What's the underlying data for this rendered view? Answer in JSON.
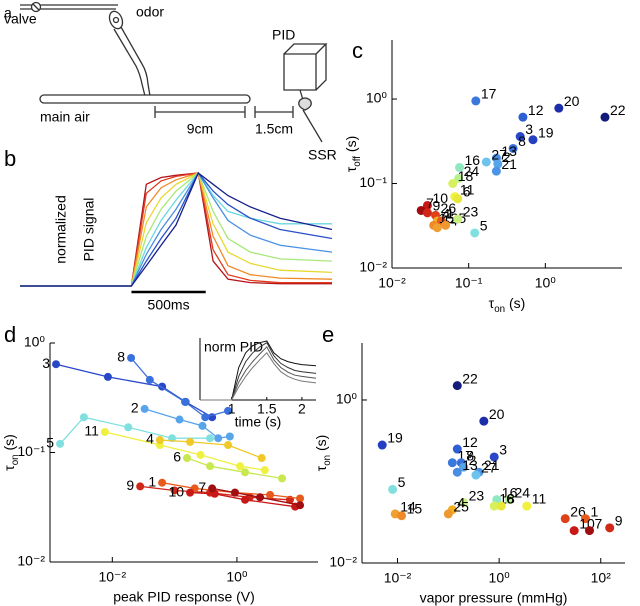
{
  "diagram": {
    "panel": "a",
    "labels": {
      "valve": "valve",
      "odor": "odor",
      "main_air": "main air",
      "dist1": "9cm",
      "dist2": "1.5cm",
      "pid": "PID",
      "ssr": "SSR"
    }
  },
  "chart_data": [
    {
      "panel": "b",
      "type": "line",
      "ylabel": [
        "normalized",
        "PID signal"
      ],
      "scale_bar": {
        "value": 500,
        "label": "500ms"
      },
      "xlim": [
        -750,
        1350
      ],
      "ylim": [
        0,
        1
      ],
      "x": [
        -750,
        0,
        100,
        200,
        300,
        450,
        550,
        650,
        800,
        1000,
        1350
      ],
      "series": [
        {
          "color": "#b3121a",
          "values": [
            0,
            0,
            0.9,
            0.96,
            0.98,
            1,
            0.22,
            0.06,
            0.03,
            0.02,
            0.02
          ]
        },
        {
          "color": "#e03a1c",
          "values": [
            0,
            0,
            0.82,
            0.93,
            0.97,
            1,
            0.32,
            0.1,
            0.05,
            0.03,
            0.03
          ]
        },
        {
          "color": "#f08a28",
          "values": [
            0,
            0,
            0.7,
            0.87,
            0.94,
            1,
            0.44,
            0.18,
            0.1,
            0.07,
            0.06
          ]
        },
        {
          "color": "#e8d830",
          "values": [
            0,
            0,
            0.56,
            0.78,
            0.9,
            1,
            0.55,
            0.3,
            0.2,
            0.14,
            0.12
          ]
        },
        {
          "color": "#a8e878",
          "values": [
            0,
            0,
            0.44,
            0.68,
            0.84,
            1,
            0.66,
            0.42,
            0.3,
            0.24,
            0.22
          ]
        },
        {
          "color": "#68d8e0",
          "values": [
            0,
            0,
            0.34,
            0.58,
            0.76,
            1,
            0.8,
            0.66,
            0.6,
            0.55,
            0.55
          ]
        },
        {
          "color": "#4a90e4",
          "values": [
            0,
            0,
            0.28,
            0.5,
            0.68,
            1,
            0.78,
            0.58,
            0.45,
            0.36,
            0.3
          ]
        },
        {
          "color": "#2a50c8",
          "values": [
            0,
            0,
            0.22,
            0.42,
            0.6,
            1,
            0.84,
            0.72,
            0.6,
            0.5,
            0.42
          ]
        },
        {
          "color": "#16208a",
          "values": [
            0,
            0,
            0.18,
            0.36,
            0.54,
            1,
            0.9,
            0.8,
            0.7,
            0.6,
            0.5
          ]
        }
      ]
    },
    {
      "panel": "c",
      "type": "scatter",
      "xlabel": {
        "symbol": "τ",
        "sub": "on",
        "unit": " (s)"
      },
      "ylabel": {
        "symbol": "τ",
        "sub": "off",
        "unit": " (s)"
      },
      "xscale": "log",
      "yscale": "log",
      "xlim": [
        0.01,
        10
      ],
      "ylim": [
        0.01,
        5
      ],
      "xticks": [
        {
          "value": 0.01,
          "label": "10⁻²"
        },
        {
          "value": 0.1,
          "label": "10⁻¹"
        },
        {
          "value": 1,
          "label": "10⁰"
        }
      ],
      "yticks": [
        {
          "value": 0.01,
          "label": "10⁻²"
        },
        {
          "value": 0.1,
          "label": "10⁻¹"
        },
        {
          "value": 1,
          "label": "10⁰"
        }
      ],
      "labels": [
        "17",
        "12",
        "20",
        "22",
        "3",
        "19",
        "8",
        "13",
        "2",
        "27",
        "21",
        "16",
        "24",
        "18",
        "11",
        "6",
        "10",
        "7",
        "9",
        "26",
        "4",
        "1",
        "15",
        "14",
        "25",
        "23",
        "5"
      ],
      "x": [
        0.124,
        0.51,
        1.5,
        6.0,
        0.47,
        0.69,
        0.38,
        0.23,
        0.24,
        0.17,
        0.23,
        0.076,
        0.074,
        0.062,
        0.066,
        0.072,
        0.029,
        0.024,
        0.029,
        0.037,
        0.039,
        0.044,
        0.035,
        0.039,
        0.05,
        0.072,
        0.12
      ],
      "values": [
        0.95,
        0.61,
        0.78,
        0.61,
        0.36,
        0.33,
        0.26,
        0.2,
        0.17,
        0.18,
        0.14,
        0.155,
        0.115,
        0.1,
        0.07,
        0.066,
        0.055,
        0.048,
        0.045,
        0.042,
        0.036,
        0.036,
        0.032,
        0.03,
        0.032,
        0.038,
        0.026
      ],
      "colors": [
        "#3b78dc",
        "#2f5fd4",
        "#1c2ea8",
        "#121c7a",
        "#2848c8",
        "#2440c0",
        "#3a70dc",
        "#4a8ee4",
        "#58a4ea",
        "#6cc4ee",
        "#4c94e6",
        "#90e8c0",
        "#b8f090",
        "#d8f060",
        "#f0f040",
        "#e8e838",
        "#c81818",
        "#a00e12",
        "#d02818",
        "#e04018",
        "#f0b020",
        "#e85a1c",
        "#f08a28",
        "#f0a030",
        "#f09830",
        "#c8f080",
        "#80e0e0"
      ]
    },
    {
      "panel": "d",
      "type": "line",
      "markers": true,
      "legend": "line-start",
      "xlabel": "peak PID response (V)",
      "ylabel": {
        "symbol": "τ",
        "sub": "on",
        "unit": " (s)"
      },
      "xscale": "log",
      "yscale": "log",
      "xlim": [
        0.001,
        20
      ],
      "ylim": [
        0.01,
        1
      ],
      "xticks": [
        {
          "value": 0.01,
          "label": "10⁻²"
        },
        {
          "value": 1,
          "label": "10⁰"
        }
      ],
      "yticks": [
        {
          "value": 0.01,
          "label": "10⁻²"
        },
        {
          "value": 0.1,
          "label": "10⁻¹"
        },
        {
          "value": 1,
          "label": "10⁰"
        }
      ],
      "series": [
        {
          "name": "3",
          "color": "#2848c8",
          "x": [
            0.00125,
            0.0085,
            0.063,
            0.15,
            0.4
          ],
          "values": [
            0.64,
            0.49,
            0.4,
            0.29,
            0.21
          ]
        },
        {
          "name": "8",
          "color": "#3a70dc",
          "x": [
            0.02,
            0.04,
            0.147,
            0.31,
            0.72
          ],
          "values": [
            0.73,
            0.46,
            0.29,
            0.21,
            0.24
          ]
        },
        {
          "name": "2",
          "color": "#58a4ea",
          "x": [
            0.033,
            0.12,
            0.28,
            0.5,
            0.77
          ],
          "values": [
            0.25,
            0.2,
            0.175,
            0.135,
            0.14
          ]
        },
        {
          "name": "5",
          "color": "#80e0e0",
          "x": [
            0.00145,
            0.0035,
            0.018,
            0.091,
            0.37
          ],
          "values": [
            0.12,
            0.21,
            0.17,
            0.135,
            0.135
          ]
        },
        {
          "name": "11",
          "color": "#f0f040",
          "x": [
            0.0076,
            0.058,
            0.26,
            1.12,
            2.8
          ],
          "values": [
            0.154,
            0.117,
            0.095,
            0.075,
            0.069
          ]
        },
        {
          "name": "4",
          "color": "#f0c828",
          "x": [
            0.058,
            0.177,
            0.72,
            2.5
          ],
          "values": [
            0.13,
            0.125,
            0.117,
            0.089
          ]
        },
        {
          "name": "6",
          "color": "#c8e850",
          "x": [
            0.158,
            0.37,
            1.35,
            5.3
          ],
          "values": [
            0.089,
            0.075,
            0.066,
            0.058
          ]
        },
        {
          "name": "9",
          "color": "#d02818",
          "x": [
            0.028,
            0.1,
            0.37,
            1.6,
            7.1
          ],
          "values": [
            0.049,
            0.045,
            0.043,
            0.039,
            0.037
          ]
        },
        {
          "name": "1",
          "color": "#e85a1c",
          "x": [
            0.063,
            0.21,
            0.93,
            3.4,
            10.3
          ],
          "values": [
            0.053,
            0.047,
            0.043,
            0.041,
            0.038
          ]
        },
        {
          "name": "10",
          "color": "#c81818",
          "x": [
            0.177,
            0.44,
            1.35,
            8.6
          ],
          "values": [
            0.043,
            0.042,
            0.037,
            0.032
          ]
        },
        {
          "name": "7",
          "color": "#a00e12",
          "x": [
            0.4,
            0.93,
            2.35,
            10.3
          ],
          "values": [
            0.047,
            0.043,
            0.039,
            0.033
          ]
        }
      ]
    },
    {
      "type": "line",
      "xlabel": "time (s)",
      "ylabel": "norm PID",
      "xlim": [
        0.55,
        2.2
      ],
      "ylim": [
        0,
        1.05
      ],
      "xticks": [
        1,
        1.5,
        2
      ],
      "x": [
        0.55,
        1,
        1.1,
        1.2,
        1.3,
        1.4,
        1.5,
        1.6,
        1.7,
        1.8,
        1.9,
        2,
        2.2
      ],
      "series": [
        {
          "color": "#111111",
          "values": [
            0,
            0,
            0.55,
            0.8,
            0.92,
            0.97,
            1,
            0.8,
            0.7,
            0.65,
            0.62,
            0.6,
            0.58
          ]
        },
        {
          "color": "#333333",
          "values": [
            0,
            0,
            0.4,
            0.65,
            0.8,
            0.9,
            0.97,
            0.75,
            0.62,
            0.55,
            0.5,
            0.48,
            0.45
          ]
        },
        {
          "color": "#555555",
          "values": [
            0,
            0,
            0.3,
            0.5,
            0.65,
            0.78,
            0.9,
            0.68,
            0.55,
            0.47,
            0.42,
            0.4,
            0.37
          ]
        },
        {
          "color": "#777777",
          "values": [
            0,
            0,
            0.22,
            0.4,
            0.55,
            0.68,
            0.8,
            0.62,
            0.48,
            0.4,
            0.35,
            0.32,
            0.29
          ]
        }
      ]
    },
    {
      "panel": "e",
      "type": "scatter",
      "xlabel": "vapor pressure (mmHg)",
      "ylabel": {
        "symbol": "τ",
        "sub": "on",
        "unit": " (s)"
      },
      "xscale": "log",
      "yscale": "log",
      "xlim": [
        0.002,
        300
      ],
      "ylim": [
        0.01,
        5
      ],
      "xticks": [
        {
          "value": 0.01,
          "label": "10⁻²"
        },
        {
          "value": 1,
          "label": "10⁰"
        },
        {
          "value": 100,
          "label": "10²"
        }
      ],
      "yticks": [
        {
          "value": 0.01,
          "label": "10⁻²"
        },
        {
          "value": 1,
          "label": "10⁰"
        }
      ],
      "labels": [
        "22",
        "20",
        "19",
        "12",
        "3",
        "17",
        "8",
        "2",
        "21",
        "13",
        "27",
        "5",
        "16",
        "24",
        "18",
        "6",
        "11",
        "23",
        "4",
        "14",
        "15",
        "25",
        "26",
        "1",
        "10",
        "7",
        "9"
      ],
      "x": [
        0.15,
        0.5,
        0.005,
        0.15,
        0.8,
        0.12,
        0.18,
        0.2,
        0.4,
        0.15,
        0.35,
        0.008,
        0.9,
        1.6,
        0.8,
        1.1,
        3.5,
        0.2,
        0.12,
        0.009,
        0.012,
        0.1,
        20,
        50,
        30,
        60,
        150
      ],
      "values": [
        1.5,
        0.55,
        0.28,
        0.25,
        0.2,
        0.17,
        0.17,
        0.15,
        0.13,
        0.13,
        0.12,
        0.08,
        0.06,
        0.06,
        0.05,
        0.05,
        0.05,
        0.055,
        0.045,
        0.04,
        0.038,
        0.04,
        0.035,
        0.035,
        0.025,
        0.025,
        0.027
      ],
      "colors": [
        "#121c7a",
        "#1c2ea8",
        "#2440c0",
        "#2f5fd4",
        "#2848c8",
        "#3b78dc",
        "#3a70dc",
        "#58a4ea",
        "#4c94e6",
        "#4a8ee4",
        "#6cc4ee",
        "#80e0e0",
        "#90e8c0",
        "#b8f090",
        "#d8f060",
        "#e8e838",
        "#f0f040",
        "#c8f080",
        "#f0b020",
        "#f0a030",
        "#f08a28",
        "#f09830",
        "#e04018",
        "#e85a1c",
        "#c81818",
        "#a00e12",
        "#d02818"
      ]
    }
  ]
}
